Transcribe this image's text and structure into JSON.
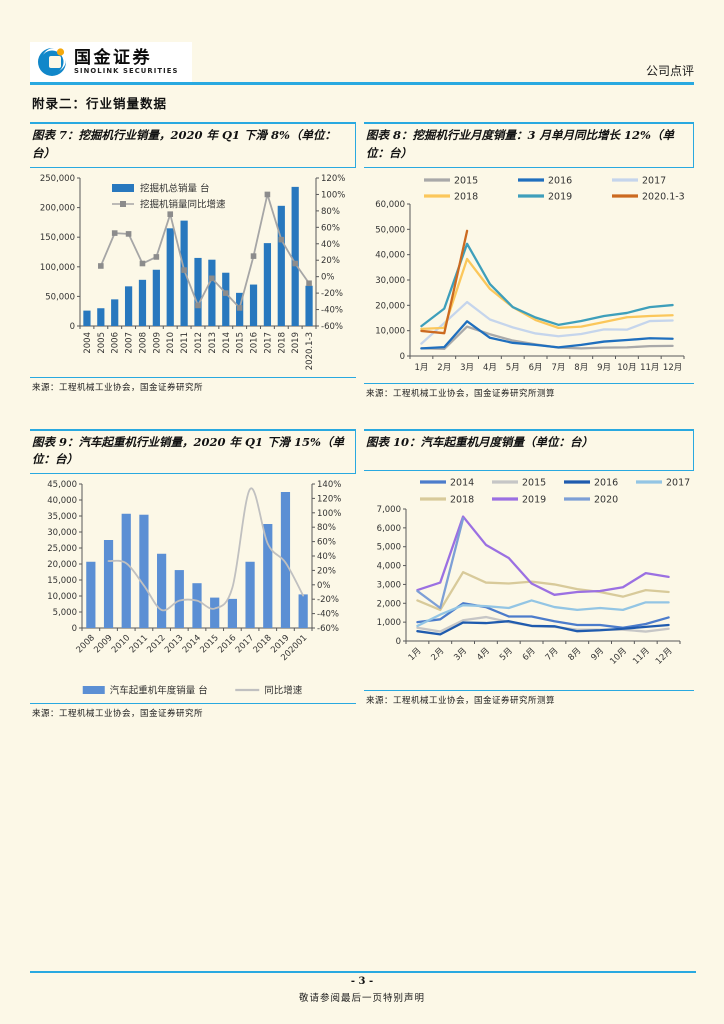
{
  "header": {
    "brand_cn": "国金证券",
    "brand_en": "SINOLINK SECURITIES",
    "doc_type": "公司点评"
  },
  "appendix_title": "附录二：行业销量数据",
  "colors": {
    "accent_blue": "#29A9E0",
    "bar_blue": "#2878BE",
    "line_gray": "#A6A6A6",
    "logo_blue": "#1187C9",
    "logo_gold": "#F5A80C"
  },
  "footer": {
    "page_number": "- 3 -",
    "note": "敬请参阅最后一页特别声明"
  },
  "chart_data": [
    {
      "id": "chart7",
      "type": "bar+line",
      "title": "图表 7：挖掘机行业销量，2020 年 Q1 下滑 8%（单位：台）",
      "source": "来源：工程机械工业协会，国金证券研究所",
      "categories": [
        "2004",
        "2005",
        "2006",
        "2007",
        "2008",
        "2009",
        "2010",
        "2011",
        "2012",
        "2013",
        "2014",
        "2015",
        "2016",
        "2017",
        "2018",
        "2019",
        "2020.1-3"
      ],
      "bar": {
        "name": "挖掘机总销量 台",
        "color": "#2878BE",
        "values": [
          26000,
          30000,
          45000,
          67000,
          78000,
          95000,
          165000,
          178000,
          115000,
          112000,
          90000,
          56000,
          70000,
          140000,
          203000,
          235000,
          68000
        ]
      },
      "line": {
        "name": "挖掘机销量同比增速",
        "color": "#A6A6A6",
        "axis": "right",
        "marker": "square",
        "smooth": false,
        "values": [
          null,
          13,
          53,
          52,
          16,
          24,
          76,
          8,
          -35,
          -2,
          -20,
          -38,
          25,
          100,
          45,
          16,
          -8
        ]
      },
      "left_axis": {
        "min": 0,
        "max": 250000,
        "step": 50000,
        "labels": [
          "0",
          "50,000",
          "100,000",
          "150,000",
          "200,000",
          "250,000"
        ]
      },
      "right_axis": {
        "min": -60,
        "max": 120,
        "step": 20,
        "labels": [
          "-60%",
          "-40%",
          "-20%",
          "0%",
          "20%",
          "40%",
          "60%",
          "80%",
          "100%",
          "120%"
        ]
      },
      "legend_position": "top-inside"
    },
    {
      "id": "chart8",
      "type": "line",
      "title": "图表 8：挖掘机行业月度销量：3 月单月同比增长 12%（单位：台）",
      "source": "来源：工程机械工业协会，国金证券研究所测算",
      "categories": [
        "1月",
        "2月",
        "3月",
        "4月",
        "5月",
        "6月",
        "7月",
        "8月",
        "9月",
        "10月",
        "11月",
        "12月"
      ],
      "series": [
        {
          "name": "2015",
          "color": "#A9A9A9",
          "values": [
            3000,
            2800,
            11600,
            8600,
            6100,
            4600,
            3300,
            3000,
            3300,
            3400,
            3900,
            4000
          ]
        },
        {
          "name": "2016",
          "color": "#1F6FBE",
          "values": [
            3000,
            3500,
            13700,
            7200,
            5200,
            4400,
            3400,
            4400,
            5700,
            6300,
            7000,
            6800
          ]
        },
        {
          "name": "2017",
          "color": "#C5D5EC",
          "values": [
            4900,
            13000,
            21300,
            14400,
            11300,
            8900,
            7800,
            8700,
            10500,
            10400,
            13800,
            14000
          ]
        },
        {
          "name": "2018",
          "color": "#FBC75B",
          "values": [
            10700,
            11100,
            38300,
            26500,
            19300,
            14200,
            11100,
            11600,
            13400,
            15300,
            15800,
            16100
          ]
        },
        {
          "name": "2019",
          "color": "#3E9FBB",
          "values": [
            11800,
            18700,
            44300,
            28400,
            19300,
            15200,
            12300,
            13800,
            15800,
            17000,
            19300,
            20100
          ]
        },
        {
          "name": "2020.1-3",
          "color": "#CC6A20",
          "values": [
            9900,
            9000,
            49400
          ]
        }
      ],
      "left_axis": {
        "min": 0,
        "max": 60000,
        "step": 10000,
        "labels": [
          "0",
          "10,000",
          "20,000",
          "30,000",
          "40,000",
          "50,000",
          "60,000"
        ]
      },
      "legend_position": "top"
    },
    {
      "id": "chart9",
      "type": "bar+line",
      "title": "图表 9：汽车起重机行业销量，2020 年 Q1 下滑 15%（单位：台）",
      "source": "来源：工程机械工业协会，国金证券研究所",
      "categories": [
        "2008",
        "2009",
        "2010",
        "2011",
        "2012",
        "2013",
        "2014",
        "2015",
        "2016",
        "2017",
        "2018",
        "2019",
        "202001"
      ],
      "bar": {
        "name": "汽车起重机年度销量 台",
        "color": "#5B8FD4",
        "values": [
          20700,
          27500,
          35700,
          35400,
          23200,
          18100,
          14000,
          9500,
          9100,
          20700,
          32500,
          42500,
          10500
        ]
      },
      "line": {
        "name": "同比增速",
        "color": "#C0C0C0",
        "axis": "right",
        "marker": "none",
        "smooth": true,
        "values": [
          null,
          33,
          30,
          -1,
          -35,
          -22,
          -22,
          -33,
          -4,
          133,
          57,
          31,
          -15
        ]
      },
      "left_axis": {
        "min": 0,
        "max": 45000,
        "step": 5000,
        "labels": [
          "0",
          "5,000",
          "10,000",
          "15,000",
          "20,000",
          "25,000",
          "30,000",
          "35,000",
          "40,000",
          "45,000"
        ]
      },
      "right_axis": {
        "min": -60,
        "max": 140,
        "step": 20,
        "labels": [
          "-60%",
          "-40%",
          "-20%",
          "0%",
          "20%",
          "40%",
          "60%",
          "80%",
          "100%",
          "120%",
          "140%"
        ]
      },
      "legend_position": "bottom"
    },
    {
      "id": "chart10",
      "type": "line",
      "title": "图表 10：汽车起重机月度销量（单位：台）",
      "source": "来源：工程机械工业协会，国金证券研究所测算",
      "categories": [
        "1月",
        "2月",
        "3月",
        "4月",
        "5月",
        "6月",
        "7月",
        "8月",
        "9月",
        "10月",
        "11月",
        "12月"
      ],
      "series": [
        {
          "name": "2014",
          "color": "#4C7CCB",
          "values": [
            1000,
            1150,
            2000,
            1800,
            1300,
            1300,
            1050,
            850,
            850,
            700,
            900,
            1250
          ]
        },
        {
          "name": "2015",
          "color": "#C6C6C6",
          "values": [
            700,
            500,
            1100,
            1270,
            1000,
            800,
            750,
            600,
            600,
            600,
            500,
            650
          ]
        },
        {
          "name": "2016",
          "color": "#1F5BAE",
          "values": [
            520,
            350,
            980,
            950,
            1050,
            800,
            780,
            520,
            570,
            650,
            750,
            850
          ]
        },
        {
          "name": "2017",
          "color": "#93C5E4",
          "values": [
            800,
            1400,
            1900,
            1850,
            1750,
            2150,
            1800,
            1650,
            1750,
            1650,
            2050,
            2050
          ]
        },
        {
          "name": "2018",
          "color": "#D8CA9A",
          "values": [
            2150,
            1650,
            3650,
            3100,
            3050,
            3150,
            3000,
            2750,
            2600,
            2350,
            2700,
            2600
          ]
        },
        {
          "name": "2019",
          "color": "#9B70E2",
          "values": [
            2700,
            3100,
            6600,
            5100,
            4400,
            3050,
            2450,
            2600,
            2650,
            2850,
            3600,
            3400
          ]
        },
        {
          "name": "2020",
          "color": "#7D9FD6",
          "values": [
            2650,
            1750,
            6500
          ]
        }
      ],
      "left_axis": {
        "min": 0,
        "max": 7000,
        "step": 1000,
        "labels": [
          "0",
          "1,000",
          "2,000",
          "3,000",
          "4,000",
          "5,000",
          "6,000",
          "7,000"
        ]
      },
      "legend_position": "top"
    }
  ]
}
